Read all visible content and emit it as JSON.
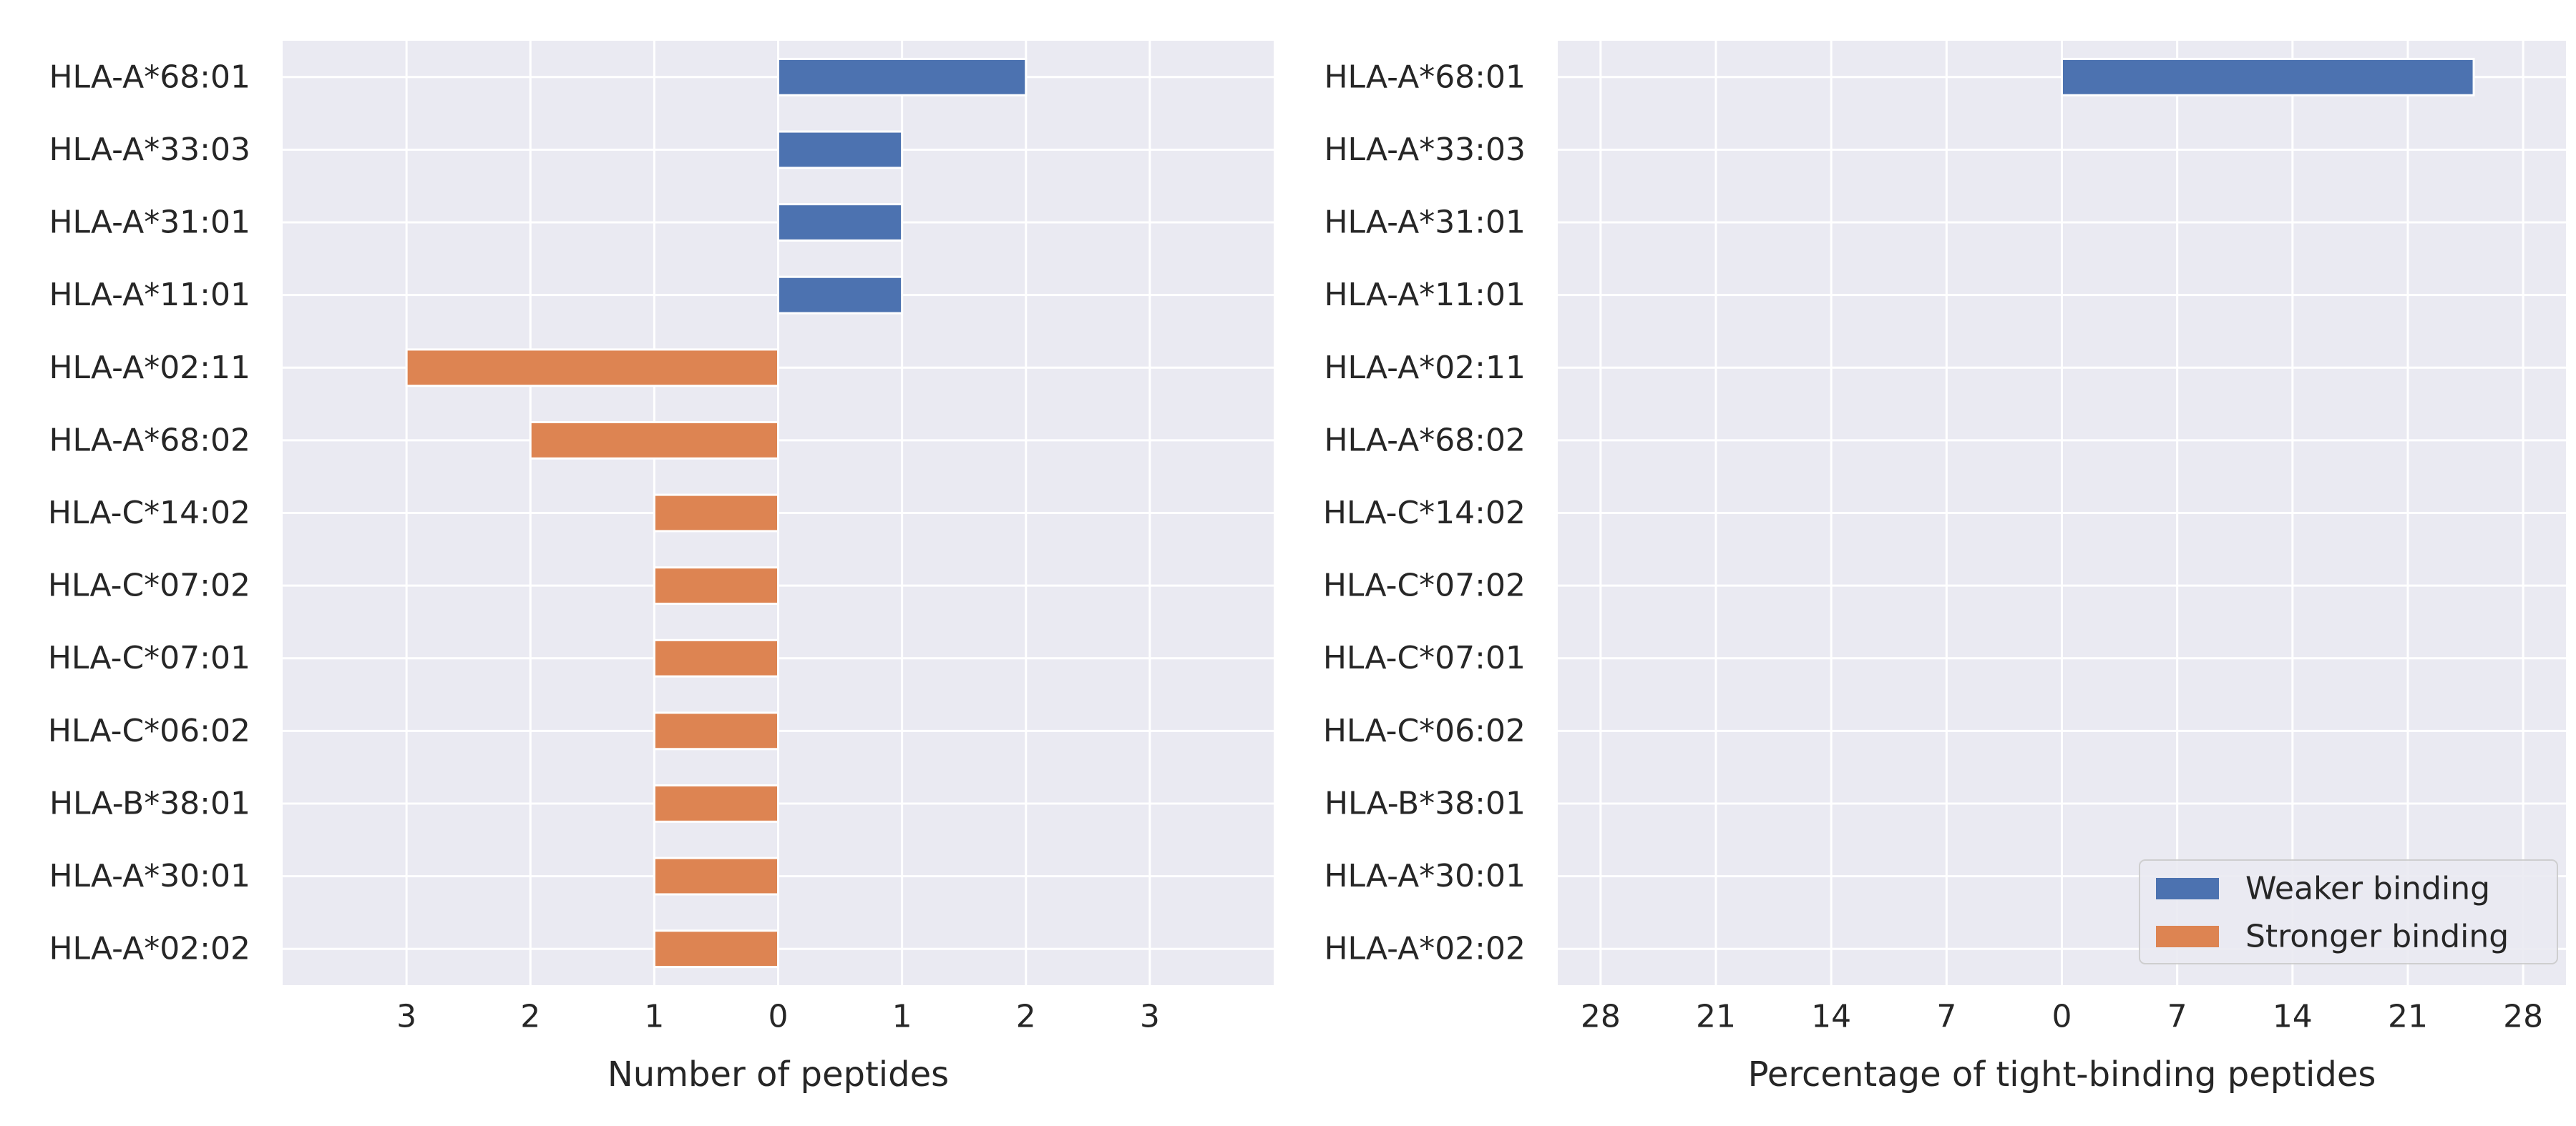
{
  "chart_data": [
    {
      "type": "bar",
      "orientation": "horizontal",
      "xlabel": "Number of peptides",
      "ylabel": "",
      "xlim": [
        -4,
        4
      ],
      "x_ticks": [
        -3,
        -2,
        -1,
        0,
        1,
        2,
        3
      ],
      "x_tick_labels": [
        "3",
        "2",
        "1",
        "0",
        "1",
        "2",
        "3"
      ],
      "grid": true,
      "background": "#eaeaf2",
      "categories": [
        "HLA-A*68:01",
        "HLA-A*33:03",
        "HLA-A*31:01",
        "HLA-A*11:01",
        "HLA-A*02:11",
        "HLA-A*68:02",
        "HLA-C*14:02",
        "HLA-C*07:02",
        "HLA-C*07:01",
        "HLA-C*06:02",
        "HLA-B*38:01",
        "HLA-A*30:01",
        "HLA-A*02:02"
      ],
      "series": [
        {
          "name": "Weaker binding",
          "color": "#4c72b0",
          "values": [
            2,
            1,
            1,
            1,
            0,
            0,
            0,
            0,
            0,
            0,
            0,
            0,
            0
          ]
        },
        {
          "name": "Stronger binding",
          "color": "#dd8452",
          "values": [
            0,
            0,
            0,
            0,
            3,
            2,
            1,
            1,
            1,
            1,
            1,
            1,
            1
          ]
        }
      ]
    },
    {
      "type": "bar",
      "orientation": "horizontal",
      "xlabel": "Percentage of tight-binding peptides",
      "ylabel": "",
      "xlim": [
        -30.6,
        30.6
      ],
      "x_ticks": [
        -28,
        -21,
        -14,
        -7,
        0,
        7,
        14,
        21,
        28
      ],
      "x_tick_labels": [
        "28",
        "21",
        "14",
        "7",
        "0",
        "7",
        "14",
        "21",
        "28"
      ],
      "grid": true,
      "background": "#eaeaf2",
      "legend_position": "bottom-right",
      "categories": [
        "HLA-A*68:01",
        "HLA-A*33:03",
        "HLA-A*31:01",
        "HLA-A*11:01",
        "HLA-A*02:11",
        "HLA-A*68:02",
        "HLA-C*14:02",
        "HLA-C*07:02",
        "HLA-C*07:01",
        "HLA-C*06:02",
        "HLA-B*38:01",
        "HLA-A*30:01",
        "HLA-A*02:02"
      ],
      "series": [
        {
          "name": "Weaker binding",
          "color": "#4c72b0",
          "values": [
            25,
            0,
            0,
            0,
            0,
            0,
            0,
            0,
            0,
            0,
            0,
            0,
            0
          ]
        },
        {
          "name": "Stronger binding",
          "color": "#dd8452",
          "values": [
            0,
            0,
            0,
            0,
            0,
            0,
            0,
            0,
            0,
            0,
            0,
            0,
            0
          ]
        }
      ]
    }
  ]
}
